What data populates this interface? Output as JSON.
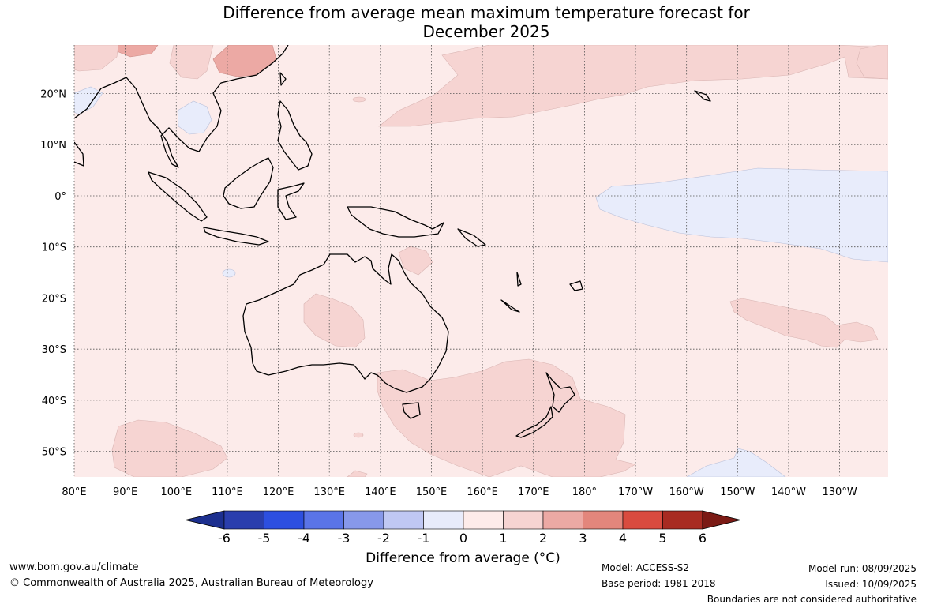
{
  "title": {
    "line1": "Difference from average mean maximum temperature forecast for",
    "line2": "December 2025"
  },
  "map": {
    "lon_labels": [
      "80°E",
      "90°E",
      "100°E",
      "110°E",
      "120°E",
      "130°E",
      "140°E",
      "150°E",
      "160°E",
      "170°E",
      "180°",
      "170°W",
      "160°W",
      "150°W",
      "140°W",
      "130°W"
    ],
    "lat_labels": [
      "20°N",
      "10°N",
      "0°",
      "10°S",
      "20°S",
      "30°S",
      "40°S",
      "50°S"
    ],
    "extent": {
      "lon_min": 80,
      "lon_max": 239.5,
      "lat_min": -55,
      "lat_max": 29.5
    },
    "background_category": "0 to 1",
    "anomaly_regions": [
      {
        "category": "1 to 2",
        "area": "tropical North Pacific east of the Philippines"
      },
      {
        "category": "1 to 2",
        "area": "Tasman Sea, New Zealand and waters south of Australia"
      },
      {
        "category": "1 to 2",
        "area": "western Australia interior"
      },
      {
        "category": "1 to 2",
        "area": "southern Indian Ocean near 50°S"
      },
      {
        "category": "1 to 2",
        "area": "South Pacific east of 150°W near 25°S"
      },
      {
        "category": "2 to 3",
        "area": "southern China"
      },
      {
        "category": "-1 to 0",
        "area": "equatorial central Pacific"
      },
      {
        "category": "-1 to 0",
        "area": "Indochina and Bay of Bengal"
      },
      {
        "category": "-1 to 0",
        "area": "Southern Ocean near 150°W"
      }
    ]
  },
  "colorbar": {
    "ticks": [
      "-6",
      "-5",
      "-4",
      "-3",
      "-2",
      "-1",
      "0",
      "1",
      "2",
      "3",
      "4",
      "5",
      "6"
    ],
    "colors": [
      "#1c2f8f",
      "#2a3ead",
      "#2d4fe0",
      "#5a74e8",
      "#8798ea",
      "#c0c8f4",
      "#e8ecfb",
      "#fdecea",
      "#f6d4d2",
      "#eca9a4",
      "#e3867c",
      "#d94b3f",
      "#a82b22",
      "#7b1a15"
    ],
    "label": "Difference from average (°C)"
  },
  "footer": {
    "website": "www.bom.gov.au/climate",
    "copyright": "© Commonwealth of Australia 2025, Australian Bureau of Meteorology",
    "model": "Model: ACCESS-S2",
    "base_period": "Base period: 1981-2018",
    "model_run": "Model run: 08/09/2025",
    "issued": "Issued: 10/09/2025",
    "disclaimer": "Boundaries are not considered authoritative"
  }
}
